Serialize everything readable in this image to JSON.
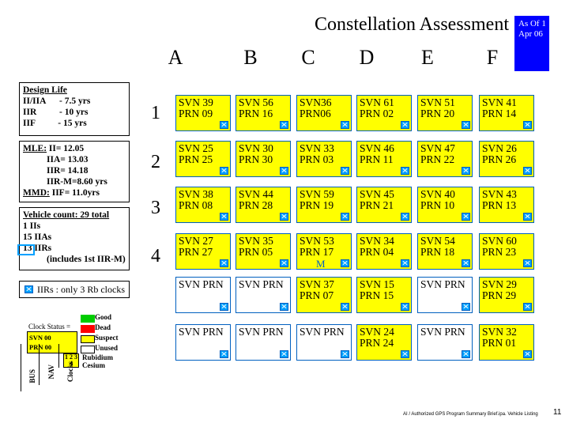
{
  "title": "Constellation Assessment",
  "as_of": "As Of 1 Apr 06",
  "columns": [
    "A",
    "B",
    "C",
    "D",
    "E",
    "F"
  ],
  "rows": [
    "1",
    "2",
    "3",
    "4"
  ],
  "design_life": {
    "heading": "Design Life",
    "lines": [
      "II/IIA      - 7.5 yrs",
      "IIR          - 10 yrs",
      "IIF          - 15 yrs"
    ]
  },
  "mle": {
    "heading": "MLE:",
    "lines": [
      "II= 12.05",
      "IIA= 13.03",
      "IIR= 14.18",
      "IIR-M=8.60 yrs"
    ],
    "mmd_heading": "MMD:",
    "mmd_value": "IIF= 11.0yrs"
  },
  "vehicle_count": {
    "heading": "Vehicle count: 29 total",
    "lines": [
      "1 IIs",
      "15 IIAs",
      "13 IIRs",
      "(includes 1st IIR-M)"
    ]
  },
  "iir_note": "IIRs : only 3 Rb clocks",
  "grid": [
    [
      "SVN 39 PRN 09",
      "SVN 56 PRN 16",
      "SVN36 PRN06",
      "SVN 61 PRN 02",
      "SVN 51 PRN 20",
      "SVN 41 PRN 14"
    ],
    [
      "SVN 25 PRN 25",
      "SVN 30 PRN 30",
      "SVN 33 PRN 03",
      "SVN 46 PRN 11",
      "SVN 47 PRN 22",
      "SVN 26 PRN 26"
    ],
    [
      "SVN 38 PRN 08",
      "SVN 44 PRN 28",
      "SVN 59 PRN 19",
      "SVN 45 PRN 21",
      "SVN 40 PRN 10",
      "SVN 43 PRN 13"
    ],
    [
      "SVN 27 PRN 27",
      "SVN 35 PRN 05",
      "SVN 53 PRN 17",
      "SVN 34 PRN 04",
      "SVN 54 PRN 18",
      "SVN 60 PRN 23"
    ],
    [
      "SVN PRN",
      "SVN PRN",
      "SVN 37 PRN 07",
      "SVN 15 PRN 15",
      "SVN PRN",
      "SVN 29 PRN 29"
    ],
    [
      "SVN PRN",
      "SVN PRN",
      "SVN PRN",
      "SVN 24 PRN 24",
      "SVN PRN",
      "SVN 32 PRN 01"
    ]
  ],
  "m_marker": "M",
  "clock_status": {
    "label": "Clock Status =",
    "svn": "SVN 00",
    "prn": "PRN 00",
    "nums": "1 2 3 4",
    "bus": "BUS",
    "nav": "NAV",
    "clocks": "Clocks",
    "legend": [
      "Good",
      "Dead",
      "Suspect",
      "Unused",
      "Rubidium",
      "Cesium"
    ]
  },
  "footnote": "AI / Authorized GPS Program Summary Brief.ipa. Vehicle Listing",
  "page_number": "11",
  "colors": {
    "cell": "#ffff00",
    "as_of_bg": "#0000ff",
    "clock": "#00a0ff",
    "border": "#0060c0"
  }
}
